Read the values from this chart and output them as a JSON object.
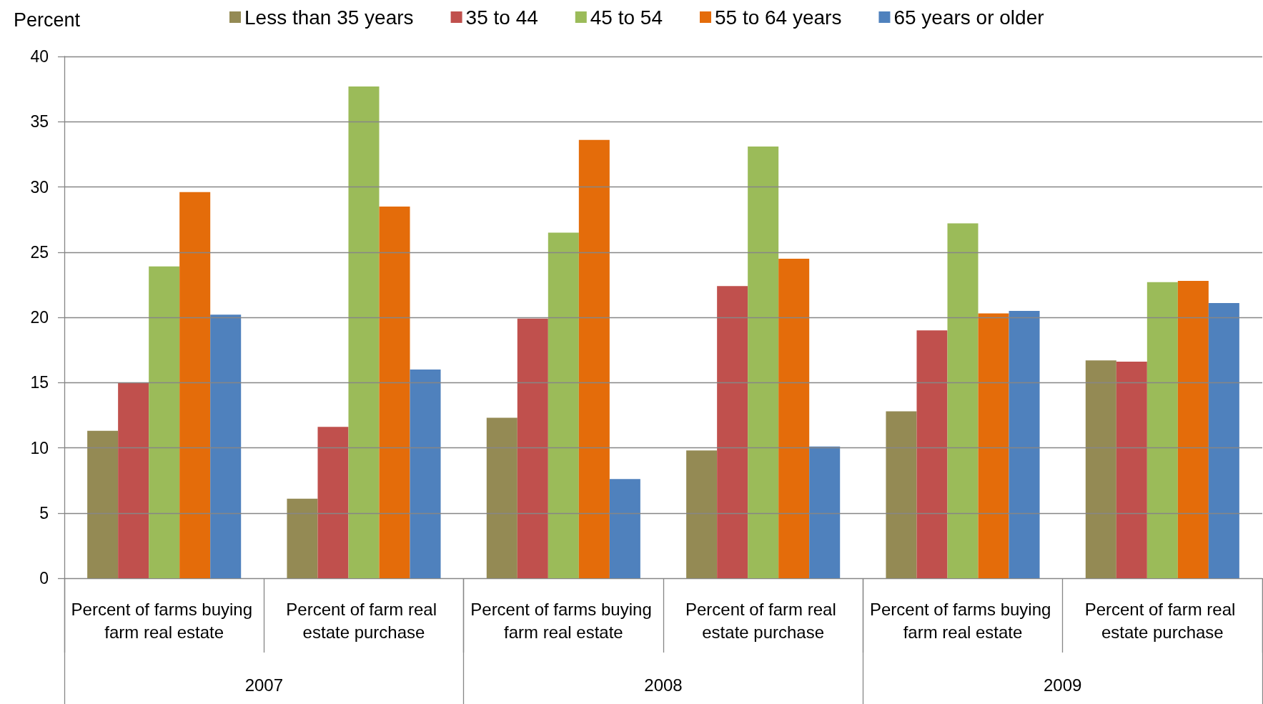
{
  "chart_data": {
    "type": "bar",
    "ylabel": "Percent",
    "categories": [
      "Percent of farms buying farm real estate",
      "Percent of farm real estate purchase",
      "Percent of farms buying farm real estate",
      "Percent of farm real estate purchase",
      "Percent of farms buying farm real estate",
      "Percent of farm real estate purchase"
    ],
    "annotations": [
      "2007",
      "2008",
      "2009"
    ],
    "series": [
      {
        "name": "Less than 35 years",
        "color": "#948a54",
        "values": [
          11.3,
          6.1,
          12.3,
          9.8,
          12.8,
          16.7
        ]
      },
      {
        "name": "35 to 44",
        "color": "#c0504d",
        "values": [
          15.0,
          11.6,
          19.9,
          22.4,
          19.0,
          16.6
        ]
      },
      {
        "name": "45 to 54",
        "color": "#9bbb59",
        "values": [
          23.9,
          37.7,
          26.5,
          33.1,
          27.2,
          22.7
        ]
      },
      {
        "name": "55 to 64 years",
        "color": "#e46c0a",
        "values": [
          29.6,
          28.5,
          33.6,
          24.5,
          20.3,
          22.8
        ]
      },
      {
        "name": "65 years or older",
        "color": "#4f81bd",
        "values": [
          20.2,
          16.0,
          7.6,
          10.1,
          20.5,
          21.1
        ]
      }
    ],
    "ylim": [
      0,
      40
    ],
    "yticks": [
      0,
      5,
      10,
      15,
      20,
      25,
      30,
      35,
      40
    ],
    "grid": "y",
    "legend": "top"
  }
}
